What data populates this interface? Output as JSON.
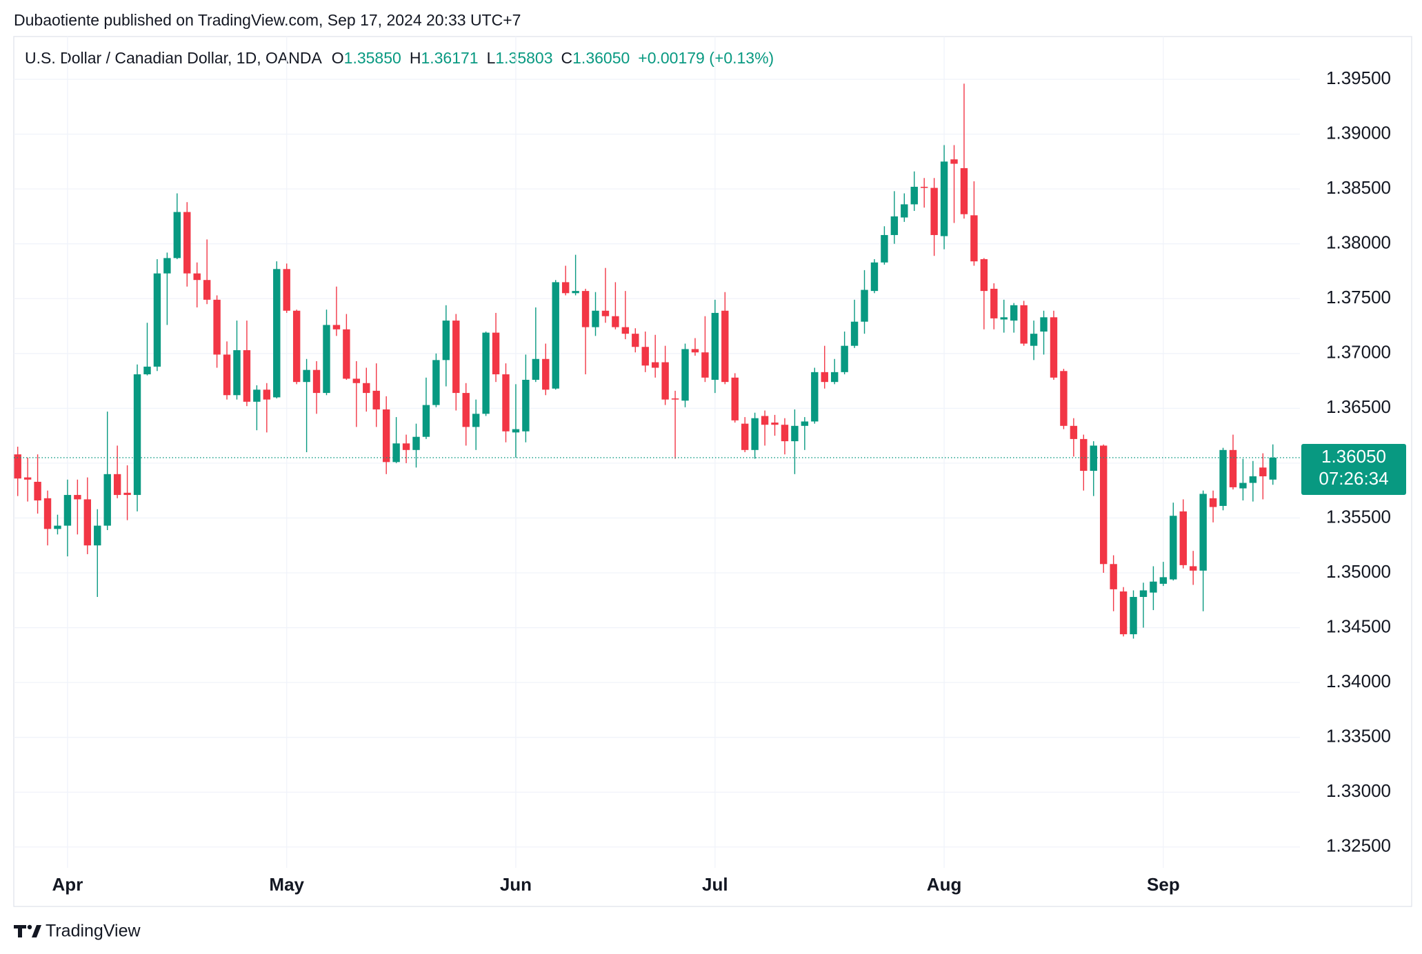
{
  "chart_data": {
    "type": "candlestick",
    "title": "Dubaotiente published on TradingView.com, Sep 17, 2024 20:33 UTC+7",
    "symbol": "U.S. Dollar / Canadian Dollar, 1D, OANDA",
    "legend": [
      {
        "key": "O",
        "label": "1.35850"
      },
      {
        "key": "H",
        "label": "1.36171"
      },
      {
        "key": "L",
        "label": "1.35803"
      },
      {
        "key": "C",
        "label": "1.36050"
      }
    ],
    "change": "+0.00179 (+0.13%)",
    "last_price": {
      "value": 1.3605,
      "label": "1.36050"
    },
    "countdown": "07:26:34",
    "brand": "TradingView",
    "up_color": "#089981",
    "down_color": "#f23645",
    "grid": true,
    "ylim": [
      1.3231,
      1.3989
    ],
    "yticks": [
      {
        "value": 1.325,
        "label": "1.32500"
      },
      {
        "value": 1.33,
        "label": "1.33000"
      },
      {
        "value": 1.335,
        "label": "1.33500"
      },
      {
        "value": 1.34,
        "label": "1.34000"
      },
      {
        "value": 1.345,
        "label": "1.34500"
      },
      {
        "value": 1.35,
        "label": "1.35000"
      },
      {
        "value": 1.355,
        "label": "1.35500"
      },
      {
        "value": 1.36,
        "label": "1.36000"
      },
      {
        "value": 1.365,
        "label": "1.36500"
      },
      {
        "value": 1.37,
        "label": "1.37000"
      },
      {
        "value": 1.375,
        "label": "1.37500"
      },
      {
        "value": 1.38,
        "label": "1.38000"
      },
      {
        "value": 1.385,
        "label": "1.38500"
      },
      {
        "value": 1.39,
        "label": "1.39000"
      },
      {
        "value": 1.395,
        "label": "1.39500"
      }
    ],
    "categories": [
      null,
      null,
      null,
      null,
      null,
      "Apr",
      null,
      null,
      null,
      null,
      null,
      null,
      null,
      null,
      null,
      null,
      null,
      null,
      null,
      null,
      null,
      null,
      null,
      null,
      null,
      null,
      null,
      "May",
      null,
      null,
      null,
      null,
      null,
      null,
      null,
      null,
      null,
      null,
      null,
      null,
      null,
      null,
      null,
      null,
      null,
      null,
      null,
      null,
      null,
      null,
      "Jun",
      null,
      null,
      null,
      null,
      null,
      null,
      null,
      null,
      null,
      null,
      null,
      null,
      null,
      null,
      null,
      null,
      null,
      null,
      null,
      "Jul",
      null,
      null,
      null,
      null,
      null,
      null,
      null,
      null,
      null,
      null,
      null,
      null,
      null,
      null,
      null,
      null,
      null,
      null,
      null,
      null,
      null,
      null,
      "Aug",
      null,
      null,
      null,
      null,
      null,
      null,
      null,
      null,
      null,
      null,
      null,
      null,
      null,
      null,
      null,
      null,
      null,
      null,
      null,
      null,
      null,
      "Sep",
      null,
      null,
      null,
      null,
      null,
      null,
      null,
      null,
      null,
      null,
      null
    ],
    "open": [
      1.3608,
      1.3587,
      1.3583,
      1.3568,
      1.354,
      1.3543,
      1.3571,
      1.3567,
      1.3525,
      1.3543,
      1.359,
      1.3573,
      1.3571,
      1.3681,
      1.3688,
      1.3773,
      1.3787,
      1.3829,
      1.3773,
      1.3767,
      1.3749,
      1.3699,
      1.3662,
      1.3703,
      1.3656,
      1.3667,
      1.366,
      1.3777,
      1.3739,
      1.3674,
      1.3685,
      1.3664,
      1.3726,
      1.3722,
      1.3677,
      1.3673,
      1.3666,
      1.3649,
      1.3601,
      1.3618,
      1.3612,
      1.3624,
      1.3653,
      1.3694,
      1.373,
      1.3664,
      1.3633,
      1.3645,
      1.3719,
      1.3681,
      1.3628,
      1.3629,
      1.3676,
      1.3695,
      1.3668,
      1.3765,
      1.3755,
      1.3757,
      1.3724,
      1.3739,
      1.3734,
      1.3724,
      1.3718,
      1.3706,
      1.3692,
      1.3692,
      1.3659,
      1.3657,
      1.3704,
      1.3701,
      1.3676,
      1.3739,
      1.3678,
      1.3636,
      1.3612,
      1.3643,
      1.3637,
      1.3635,
      1.362,
      1.3634,
      1.3638,
      1.3683,
      1.3674,
      1.3683,
      1.3707,
      1.3729,
      1.3757,
      1.3783,
      1.3808,
      1.3824,
      1.3836,
      1.3852,
      1.3851,
      1.3807,
      1.3877,
      1.3869,
      1.3826,
      1.3786,
      1.3759,
      1.3731,
      1.373,
      1.3744,
      1.3707,
      1.372,
      1.3733,
      1.3684,
      1.3634,
      1.3622,
      1.3593,
      1.3616,
      1.3508,
      1.3483,
      1.3444,
      1.3478,
      1.3482,
      1.349,
      1.3494,
      1.3556,
      1.3506,
      1.3502,
      1.3568,
      1.3561,
      1.3612,
      1.3577,
      1.3582,
      1.3596,
      1.3585
    ],
    "high": [
      1.3615,
      1.3605,
      1.3608,
      1.3575,
      1.3553,
      1.3585,
      1.3585,
      1.3587,
      1.3558,
      1.3647,
      1.3616,
      1.3598,
      1.369,
      1.3728,
      1.3786,
      1.3792,
      1.3846,
      1.3838,
      1.3783,
      1.3804,
      1.3753,
      1.3711,
      1.373,
      1.373,
      1.3671,
      1.3673,
      1.3784,
      1.3782,
      1.374,
      1.3695,
      1.3693,
      1.374,
      1.3761,
      1.3736,
      1.3693,
      1.3687,
      1.3691,
      1.3661,
      1.3642,
      1.3626,
      1.3636,
      1.3678,
      1.37,
      1.3744,
      1.3736,
      1.3673,
      1.3658,
      1.372,
      1.3737,
      1.3691,
      1.3672,
      1.3699,
      1.3742,
      1.3709,
      1.3767,
      1.378,
      1.379,
      1.3759,
      1.3756,
      1.3778,
      1.3765,
      1.3757,
      1.3723,
      1.372,
      1.3717,
      1.3707,
      1.3666,
      1.3709,
      1.3714,
      1.3734,
      1.3749,
      1.3756,
      1.3682,
      1.3642,
      1.3646,
      1.3648,
      1.3644,
      1.3641,
      1.3649,
      1.3642,
      1.3687,
      1.3707,
      1.3695,
      1.372,
      1.3749,
      1.3776,
      1.3786,
      1.3816,
      1.3848,
      1.3846,
      1.3866,
      1.386,
      1.386,
      1.389,
      1.389,
      1.3946,
      1.3857,
      1.3787,
      1.3764,
      1.3749,
      1.3746,
      1.3748,
      1.373,
      1.3739,
      1.3739,
      1.3686,
      1.3641,
      1.3626,
      1.362,
      1.3617,
      1.3516,
      1.3487,
      1.3484,
      1.3491,
      1.3506,
      1.351,
      1.3564,
      1.3567,
      1.352,
      1.3575,
      1.3575,
      1.3614,
      1.3626,
      1.3604,
      1.3602,
      1.3609,
      1.36171
    ],
    "low": [
      1.357,
      1.3565,
      1.3554,
      1.3525,
      1.3535,
      1.3515,
      1.3535,
      1.3517,
      1.3478,
      1.3539,
      1.3568,
      1.3548,
      1.3556,
      1.368,
      1.3684,
      1.3726,
      1.3786,
      1.3761,
      1.3742,
      1.3745,
      1.3687,
      1.3658,
      1.3658,
      1.3652,
      1.363,
      1.3628,
      1.3659,
      1.3737,
      1.3672,
      1.361,
      1.3645,
      1.3662,
      1.3716,
      1.3676,
      1.3633,
      1.3647,
      1.3633,
      1.359,
      1.36,
      1.36,
      1.3596,
      1.3622,
      1.3651,
      1.367,
      1.3648,
      1.3616,
      1.3612,
      1.3643,
      1.3674,
      1.3619,
      1.3605,
      1.3619,
      1.3674,
      1.3662,
      1.3667,
      1.3753,
      1.3753,
      1.3681,
      1.3716,
      1.3728,
      1.3722,
      1.3713,
      1.3701,
      1.3683,
      1.3678,
      1.3653,
      1.3604,
      1.3651,
      1.3698,
      1.3674,
      1.3664,
      1.3672,
      1.3637,
      1.361,
      1.3604,
      1.3616,
      1.3625,
      1.3608,
      1.359,
      1.3612,
      1.3636,
      1.3668,
      1.3672,
      1.3681,
      1.3705,
      1.3718,
      1.3755,
      1.3781,
      1.38,
      1.382,
      1.383,
      1.3833,
      1.3789,
      1.3795,
      1.3819,
      1.3823,
      1.378,
      1.3722,
      1.3722,
      1.3719,
      1.3719,
      1.3707,
      1.3694,
      1.3699,
      1.3676,
      1.3631,
      1.3606,
      1.3575,
      1.357,
      1.35,
      1.3465,
      1.3442,
      1.344,
      1.345,
      1.3466,
      1.3488,
      1.3493,
      1.3504,
      1.3489,
      1.3465,
      1.3546,
      1.3557,
      1.3576,
      1.3566,
      1.3565,
      1.3567,
      1.35803
    ],
    "close": [
      1.3586,
      1.3585,
      1.3566,
      1.354,
      1.3543,
      1.3571,
      1.3567,
      1.3525,
      1.3543,
      1.359,
      1.3571,
      1.3571,
      1.3681,
      1.3688,
      1.3773,
      1.3787,
      1.3829,
      1.3773,
      1.3767,
      1.3749,
      1.3699,
      1.3662,
      1.3703,
      1.3656,
      1.3667,
      1.3658,
      1.3777,
      1.3739,
      1.3674,
      1.3685,
      1.3664,
      1.3726,
      1.3722,
      1.3677,
      1.3673,
      1.3664,
      1.3649,
      1.3601,
      1.3618,
      1.3612,
      1.3624,
      1.3653,
      1.3694,
      1.373,
      1.3664,
      1.3633,
      1.3645,
      1.3719,
      1.3681,
      1.3629,
      1.3631,
      1.3676,
      1.3695,
      1.3667,
      1.3765,
      1.3755,
      1.3757,
      1.3724,
      1.3739,
      1.3734,
      1.3724,
      1.3718,
      1.3706,
      1.3689,
      1.3687,
      1.3658,
      1.3658,
      1.3704,
      1.3701,
      1.3678,
      1.3737,
      1.3674,
      1.3639,
      1.3612,
      1.3641,
      1.3635,
      1.3635,
      1.362,
      1.3634,
      1.3638,
      1.3683,
      1.3674,
      1.3683,
      1.3707,
      1.3729,
      1.3758,
      1.3783,
      1.3808,
      1.3825,
      1.3836,
      1.3852,
      1.3851,
      1.3808,
      1.3875,
      1.3873,
      1.3827,
      1.3784,
      1.3757,
      1.3732,
      1.3733,
      1.3744,
      1.3709,
      1.3718,
      1.3733,
      1.3678,
      1.3634,
      1.3622,
      1.3593,
      1.3616,
      1.3508,
      1.3485,
      1.3444,
      1.3478,
      1.3484,
      1.3492,
      1.3496,
      1.3552,
      1.3507,
      1.3502,
      1.3572,
      1.356,
      1.3612,
      1.3578,
      1.3582,
      1.3588,
      1.3588,
      1.3605
    ]
  }
}
